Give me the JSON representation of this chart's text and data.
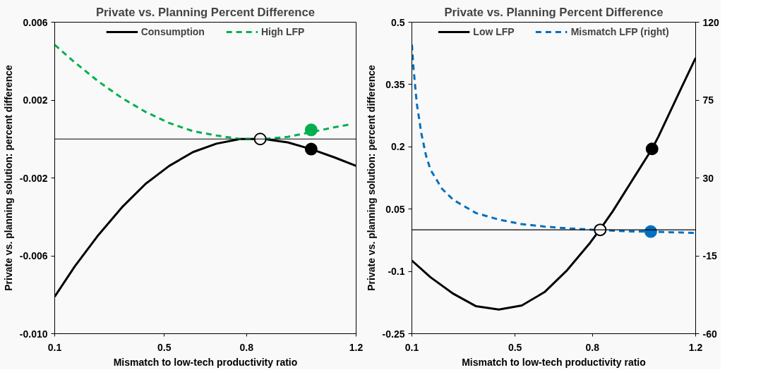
{
  "chart_data": [
    {
      "type": "line",
      "title": "Private vs. Planning Percent Difference",
      "xlabel": "Mismatch to low-tech productivity ratio",
      "ylabel": "Private vs. planning solution: percent difference",
      "xlim": [
        0.1,
        1.2
      ],
      "xticks": [
        0.1,
        0.5,
        0.8,
        1.2
      ],
      "ylim": [
        -0.01,
        0.006
      ],
      "yticks": [
        {
          "value": -0.01,
          "label": "-0.010"
        },
        -0.006,
        -0.002,
        0.002,
        0.006
      ],
      "grid": false,
      "legend": "top",
      "ref_lines": [
        {
          "axis": "y",
          "value": 0,
          "color": "#000000"
        }
      ],
      "series": [
        {
          "name": "Consumption",
          "color": "#000000",
          "line_style": "solid",
          "x": [
            0.1,
            0.173,
            0.26,
            0.346,
            0.432,
            0.518,
            0.605,
            0.69,
            0.777,
            0.863,
            0.95,
            1.036,
            1.122,
            1.2
          ],
          "values": [
            -0.0081,
            -0.00655,
            -0.00492,
            -0.0035,
            -0.0023,
            -0.00138,
            -0.00067,
            -0.00024,
            0,
            0,
            -0.00017,
            -0.00052,
            -0.00095,
            -0.00138
          ]
        },
        {
          "name": "High LFP",
          "color": "#00b050",
          "line_style": "dashed",
          "x": [
            0.1,
            0.173,
            0.26,
            0.346,
            0.432,
            0.518,
            0.605,
            0.69,
            0.777,
            0.863,
            0.95,
            1.036,
            1.122,
            1.18
          ],
          "values": [
            0.00484,
            0.00394,
            0.00295,
            0.0021,
            0.00139,
            0.00082,
            0.0004,
            0.00018,
            0,
            0,
            0.00011,
            0.00035,
            0.00061,
            0.00075
          ]
        },
        {
          "type": "scatter",
          "marker": "circle",
          "color": "#f9f9f9",
          "x": [
            0.85
          ],
          "values": [
            0
          ]
        },
        {
          "type": "scatter",
          "marker": "circle",
          "color": "#000000",
          "x": [
            1.036
          ],
          "values": [
            -0.00052
          ]
        },
        {
          "type": "scatter",
          "marker": "circle",
          "color": "#00b050",
          "x": [
            1.036
          ],
          "values": [
            0.00047
          ]
        }
      ]
    },
    {
      "type": "line",
      "title": "Private vs. Planning Percent Difference",
      "xlabel": "Mismatch to low-tech productivity ratio",
      "ylabel": "Private vs. planning solution: percent difference",
      "xlim": [
        0.1,
        1.2
      ],
      "xticks": [
        0.1,
        0.5,
        0.8,
        1.2
      ],
      "ylim": [
        -0.25,
        0.5
      ],
      "yticks": [
        -0.25,
        -0.1,
        0.05,
        0.2,
        0.35,
        0.5
      ],
      "y2lim": [
        -60,
        120
      ],
      "y2ticks": [
        -60,
        -15,
        30,
        75,
        120
      ],
      "grid": false,
      "legend": "top",
      "ref_lines": [
        {
          "axis": "y",
          "value": 0,
          "color": "#000000"
        }
      ],
      "series": [
        {
          "name": "Low LFP",
          "color": "#000000",
          "line_style": "solid",
          "x": [
            0.1,
            0.172,
            0.261,
            0.349,
            0.437,
            0.526,
            0.614,
            0.702,
            0.791,
            0.835,
            0.879,
            0.967,
            1.031,
            1.056,
            1.144,
            1.2
          ],
          "values": [
            -0.074,
            -0.114,
            -0.154,
            -0.184,
            -0.192,
            -0.182,
            -0.15,
            -0.097,
            -0.031,
            0.006,
            0.045,
            0.132,
            0.195,
            0.225,
            0.341,
            0.414
          ]
        },
        {
          "name": "Mismatch LFP (right)",
          "axis": "y2",
          "color": "#0070c0",
          "line_style": "dashed",
          "x": [
            0.1,
            0.106,
            0.119,
            0.137,
            0.155,
            0.172,
            0.217,
            0.261,
            0.349,
            0.438,
            0.526,
            0.614,
            0.703,
            0.835,
            0.968,
            1.026,
            1.2
          ],
          "values": [
            107,
            94,
            73,
            55.5,
            42.8,
            34.8,
            23.7,
            17.3,
            9.7,
            5.9,
            3.3,
            1.9,
            0.9,
            -0.2,
            -1,
            -1,
            -1.8
          ]
        },
        {
          "type": "scatter",
          "marker": "circle",
          "color": "#f9f9f9",
          "x": [
            0.83
          ],
          "values": [
            0
          ]
        },
        {
          "type": "scatter",
          "marker": "circle",
          "color": "#000000",
          "x": [
            1.031
          ],
          "values": [
            0.195
          ]
        },
        {
          "type": "scatter",
          "marker": "circle",
          "axis": "y2",
          "color": "#0070c0",
          "x": [
            1.026
          ],
          "values": [
            -1
          ]
        }
      ]
    }
  ]
}
